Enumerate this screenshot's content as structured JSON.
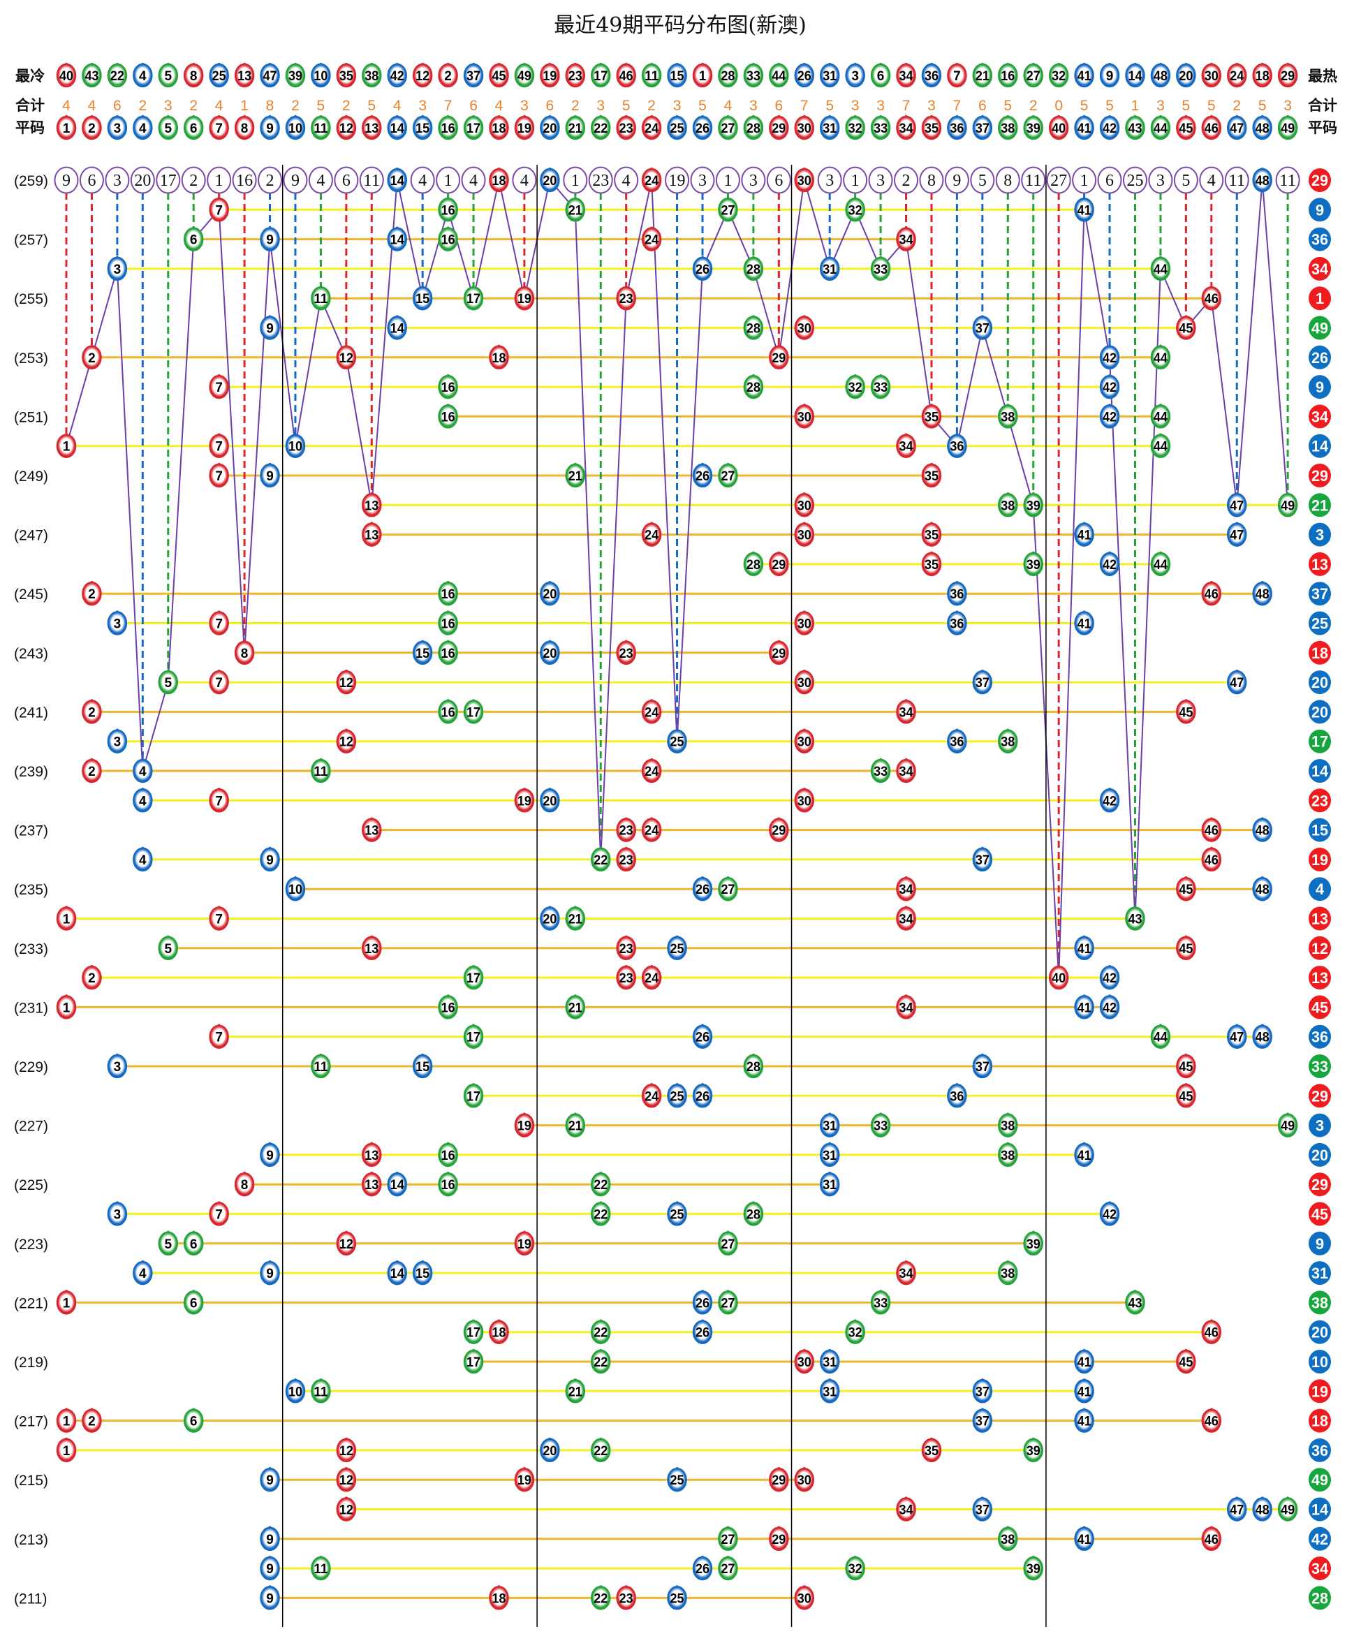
{
  "title": "最近49期平码分布图(新澳)",
  "labels": {
    "cold": "最冷",
    "hot": "最热",
    "total": "合计",
    "number": "平码"
  },
  "colors": {
    "red": "#d7262e",
    "blue": "#1669c0",
    "green": "#26a23a",
    "special_red": "#ee1b1f",
    "special_blue": "#0d6ec2",
    "special_green": "#17a53d",
    "omission_ring": "#7b4aa6",
    "trend_line": "#6b3fa8",
    "total_text": "#e8802c",
    "row_line_a": "#f6f020",
    "row_line_b": "#f0b62a"
  },
  "number_colors": {
    "red": [
      1,
      2,
      7,
      8,
      12,
      13,
      18,
      19,
      23,
      24,
      29,
      30,
      34,
      35,
      40,
      45,
      46
    ],
    "blue": [
      3,
      4,
      9,
      10,
      14,
      15,
      20,
      25,
      26,
      31,
      36,
      37,
      41,
      42,
      47,
      48
    ],
    "green": [
      5,
      6,
      11,
      16,
      17,
      21,
      22,
      27,
      28,
      32,
      33,
      38,
      39,
      43,
      44,
      49
    ]
  },
  "cold_to_hot": [
    40,
    43,
    22,
    4,
    5,
    8,
    25,
    13,
    47,
    39,
    10,
    35,
    38,
    42,
    12,
    2,
    37,
    45,
    49,
    19,
    23,
    17,
    46,
    11,
    15,
    1,
    28,
    33,
    44,
    26,
    31,
    3,
    6,
    34,
    36,
    7,
    21,
    16,
    27,
    32,
    41,
    9,
    14,
    48,
    20,
    30,
    24,
    18,
    29
  ],
  "totals": [
    4,
    4,
    6,
    2,
    3,
    2,
    4,
    1,
    8,
    2,
    5,
    2,
    5,
    4,
    3,
    7,
    6,
    4,
    3,
    6,
    2,
    3,
    5,
    2,
    3,
    5,
    4,
    3,
    6,
    7,
    5,
    3,
    3,
    7,
    3,
    7,
    6,
    5,
    2,
    0,
    5,
    5,
    1,
    3,
    5,
    5,
    2,
    5,
    3
  ],
  "numbers": [
    1,
    2,
    3,
    4,
    5,
    6,
    7,
    8,
    9,
    10,
    11,
    12,
    13,
    14,
    15,
    16,
    17,
    18,
    19,
    20,
    21,
    22,
    23,
    24,
    25,
    26,
    27,
    28,
    29,
    30,
    31,
    32,
    33,
    34,
    35,
    36,
    37,
    38,
    39,
    40,
    41,
    42,
    43,
    44,
    45,
    46,
    47,
    48,
    49
  ],
  "latest": {
    "issue": "(259)",
    "omission": [
      9,
      6,
      3,
      20,
      17,
      2,
      1,
      16,
      2,
      9,
      4,
      6,
      11,
      0,
      4,
      1,
      4,
      0,
      4,
      0,
      1,
      23,
      4,
      0,
      19,
      3,
      1,
      3,
      6,
      0,
      3,
      1,
      3,
      2,
      8,
      9,
      5,
      8,
      11,
      27,
      1,
      6,
      25,
      3,
      5,
      4,
      11,
      0,
      11
    ],
    "numbers": [
      14,
      18,
      20,
      24,
      30,
      48
    ],
    "special": 29
  },
  "rows": [
    {
      "issue": "",
      "numbers": [
        7,
        16,
        21,
        27,
        32,
        41
      ],
      "special": 9
    },
    {
      "issue": "(257)",
      "numbers": [
        6,
        9,
        14,
        16,
        24,
        34
      ],
      "special": 36
    },
    {
      "issue": "",
      "numbers": [
        3,
        26,
        28,
        31,
        33,
        44
      ],
      "special": 34
    },
    {
      "issue": "(255)",
      "numbers": [
        11,
        15,
        17,
        19,
        23,
        46
      ],
      "special": 1
    },
    {
      "issue": "",
      "numbers": [
        9,
        14,
        28,
        30,
        37,
        45
      ],
      "special": 49
    },
    {
      "issue": "(253)",
      "numbers": [
        2,
        12,
        18,
        29,
        42,
        44
      ],
      "special": 26
    },
    {
      "issue": "",
      "numbers": [
        7,
        16,
        28,
        32,
        33,
        42
      ],
      "special": 9
    },
    {
      "issue": "(251)",
      "numbers": [
        16,
        30,
        35,
        38,
        42,
        44
      ],
      "special": 34
    },
    {
      "issue": "",
      "numbers": [
        1,
        7,
        10,
        34,
        36,
        44
      ],
      "special": 14
    },
    {
      "issue": "(249)",
      "numbers": [
        7,
        9,
        21,
        26,
        27,
        35
      ],
      "special": 29
    },
    {
      "issue": "",
      "numbers": [
        13,
        30,
        38,
        39,
        47,
        49
      ],
      "special": 21
    },
    {
      "issue": "(247)",
      "numbers": [
        13,
        24,
        30,
        35,
        41,
        47
      ],
      "special": 3
    },
    {
      "issue": "",
      "numbers": [
        28,
        29,
        35,
        39,
        42,
        44
      ],
      "special": 13
    },
    {
      "issue": "(245)",
      "numbers": [
        2,
        16,
        20,
        36,
        46,
        48
      ],
      "special": 37
    },
    {
      "issue": "",
      "numbers": [
        3,
        7,
        16,
        30,
        36,
        41
      ],
      "special": 25
    },
    {
      "issue": "(243)",
      "numbers": [
        8,
        15,
        16,
        20,
        23,
        29
      ],
      "special": 18
    },
    {
      "issue": "",
      "numbers": [
        5,
        7,
        12,
        30,
        37,
        47
      ],
      "special": 20
    },
    {
      "issue": "(241)",
      "numbers": [
        2,
        16,
        17,
        24,
        34,
        45
      ],
      "special": 20
    },
    {
      "issue": "",
      "numbers": [
        3,
        12,
        25,
        30,
        36,
        38
      ],
      "special": 17
    },
    {
      "issue": "(239)",
      "numbers": [
        2,
        4,
        11,
        24,
        33,
        34
      ],
      "special": 14
    },
    {
      "issue": "",
      "numbers": [
        4,
        7,
        19,
        20,
        30,
        42
      ],
      "special": 23
    },
    {
      "issue": "(237)",
      "numbers": [
        13,
        23,
        24,
        29,
        46,
        48
      ],
      "special": 15
    },
    {
      "issue": "",
      "numbers": [
        4,
        9,
        22,
        23,
        37,
        46
      ],
      "special": 19
    },
    {
      "issue": "(235)",
      "numbers": [
        10,
        26,
        27,
        34,
        45,
        48
      ],
      "special": 4
    },
    {
      "issue": "",
      "numbers": [
        1,
        7,
        20,
        21,
        34,
        43
      ],
      "special": 13
    },
    {
      "issue": "(233)",
      "numbers": [
        5,
        13,
        23,
        25,
        41,
        45
      ],
      "special": 12
    },
    {
      "issue": "",
      "numbers": [
        2,
        17,
        23,
        24,
        40,
        42
      ],
      "special": 13
    },
    {
      "issue": "(231)",
      "numbers": [
        1,
        16,
        21,
        34,
        41,
        42
      ],
      "special": 45
    },
    {
      "issue": "",
      "numbers": [
        7,
        17,
        26,
        44,
        47,
        48
      ],
      "special": 36
    },
    {
      "issue": "(229)",
      "numbers": [
        3,
        11,
        15,
        28,
        37,
        45
      ],
      "special": 33
    },
    {
      "issue": "",
      "numbers": [
        17,
        24,
        25,
        26,
        36,
        45
      ],
      "special": 29
    },
    {
      "issue": "(227)",
      "numbers": [
        19,
        21,
        31,
        33,
        38,
        49
      ],
      "special": 3
    },
    {
      "issue": "",
      "numbers": [
        9,
        13,
        16,
        31,
        38,
        41
      ],
      "special": 20
    },
    {
      "issue": "(225)",
      "numbers": [
        8,
        13,
        14,
        16,
        22,
        31
      ],
      "special": 29
    },
    {
      "issue": "",
      "numbers": [
        3,
        7,
        22,
        25,
        28,
        42
      ],
      "special": 45
    },
    {
      "issue": "(223)",
      "numbers": [
        5,
        6,
        12,
        19,
        27,
        39
      ],
      "special": 9
    },
    {
      "issue": "",
      "numbers": [
        4,
        9,
        14,
        15,
        34,
        38
      ],
      "special": 31
    },
    {
      "issue": "(221)",
      "numbers": [
        1,
        6,
        26,
        27,
        33,
        43
      ],
      "special": 38
    },
    {
      "issue": "",
      "numbers": [
        17,
        18,
        22,
        26,
        32,
        46
      ],
      "special": 20
    },
    {
      "issue": "(219)",
      "numbers": [
        17,
        22,
        30,
        31,
        41,
        45
      ],
      "special": 10
    },
    {
      "issue": "",
      "numbers": [
        10,
        11,
        21,
        31,
        37,
        41
      ],
      "special": 19
    },
    {
      "issue": "(217)",
      "numbers": [
        1,
        2,
        6,
        37,
        41,
        46
      ],
      "special": 18
    },
    {
      "issue": "",
      "numbers": [
        1,
        12,
        20,
        22,
        35,
        39
      ],
      "special": 36
    },
    {
      "issue": "(215)",
      "numbers": [
        9,
        12,
        19,
        25,
        29,
        30
      ],
      "special": 49
    },
    {
      "issue": "",
      "numbers": [
        12,
        34,
        37,
        47,
        48,
        49
      ],
      "special": 14
    },
    {
      "issue": "(213)",
      "numbers": [
        9,
        27,
        29,
        38,
        41,
        46
      ],
      "special": 42
    },
    {
      "issue": "",
      "numbers": [
        9,
        11,
        26,
        27,
        32,
        39
      ],
      "special": 34
    },
    {
      "issue": "(211)",
      "numbers": [
        9,
        18,
        22,
        23,
        25,
        30
      ],
      "special": 28
    }
  ]
}
